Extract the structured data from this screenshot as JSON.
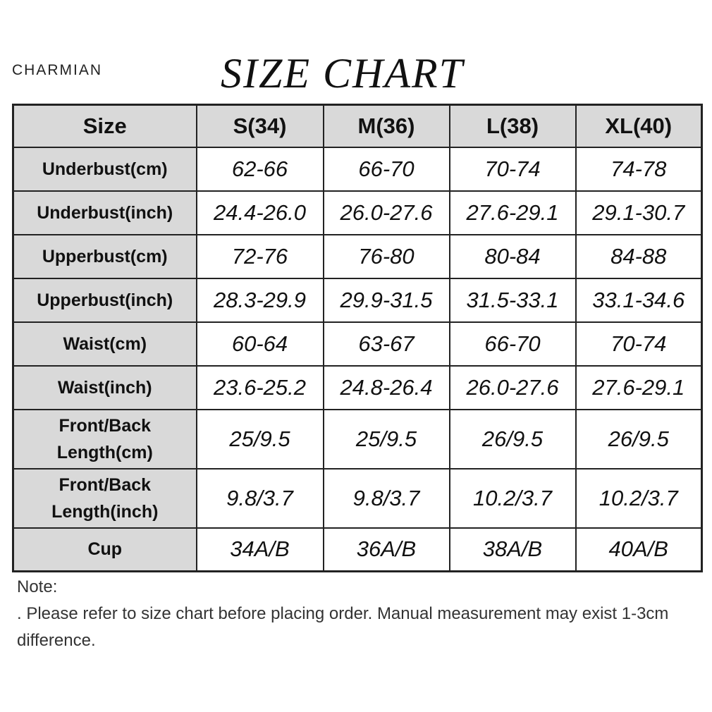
{
  "brand": "CHARMIAN",
  "title": "SIZE CHART",
  "table": {
    "header": [
      "Size",
      "S(34)",
      "M(36)",
      "L(38)",
      "XL(40)"
    ],
    "rows": [
      [
        "Underbust(cm)",
        "62-66",
        "66-70",
        "70-74",
        "74-78"
      ],
      [
        "Underbust(inch)",
        "24.4-26.0",
        "26.0-27.6",
        "27.6-29.1",
        "29.1-30.7"
      ],
      [
        "Upperbust(cm)",
        "72-76",
        "76-80",
        "80-84",
        "84-88"
      ],
      [
        "Upperbust(inch)",
        "28.3-29.9",
        "29.9-31.5",
        "31.5-33.1",
        "33.1-34.6"
      ],
      [
        "Waist(cm)",
        "60-64",
        "63-67",
        "66-70",
        "70-74"
      ],
      [
        "Waist(inch)",
        "23.6-25.2",
        "24.8-26.4",
        "26.0-27.6",
        "27.6-29.1"
      ],
      [
        "Front/Back Length(cm)",
        "25/9.5",
        "25/9.5",
        "26/9.5",
        "26/9.5"
      ],
      [
        "Front/Back Length(inch)",
        "9.8/3.7",
        "9.8/3.7",
        "10.2/3.7",
        "10.2/3.7"
      ],
      [
        "Cup",
        "34A/B",
        "36A/B",
        "38A/B",
        "40A/B"
      ]
    ]
  },
  "note": {
    "label": "Note:",
    "text": ". Please refer to size chart before placing order. Manual measurement may exist 1-3cm difference."
  }
}
